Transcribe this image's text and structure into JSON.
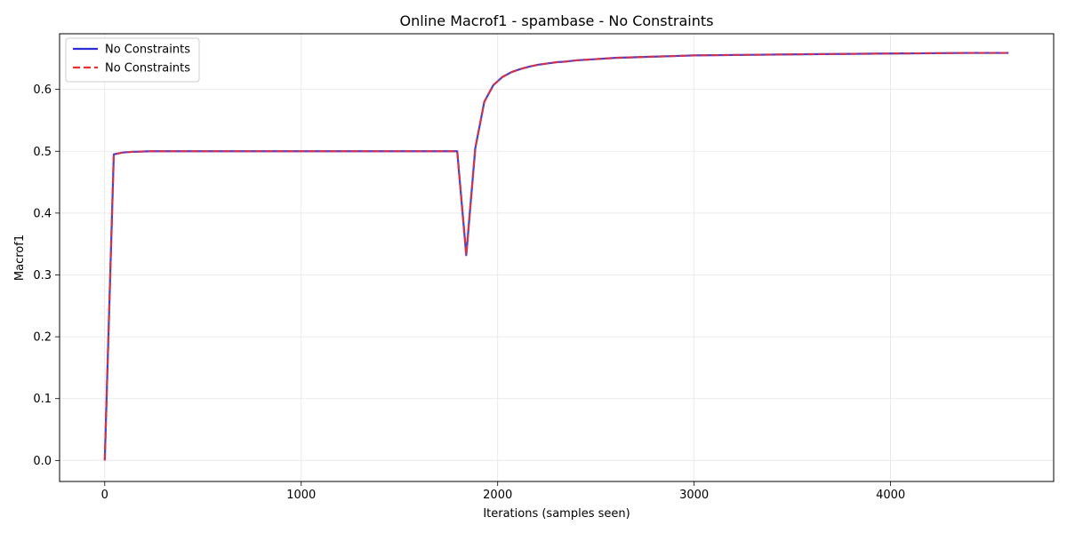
{
  "chart_data": {
    "type": "line",
    "title": "Online Macrof1 - spambase - No Constraints",
    "xlabel": "Iterations (samples seen)",
    "ylabel": "Macrof1",
    "xlim": [
      -230,
      4830
    ],
    "ylim": [
      -0.034,
      0.69
    ],
    "xticks": [
      0,
      1000,
      2000,
      3000,
      4000
    ],
    "xtick_labels": [
      "0",
      "1000",
      "2000",
      "3000",
      "4000"
    ],
    "yticks": [
      0.0,
      0.1,
      0.2,
      0.3,
      0.4,
      0.5,
      0.6
    ],
    "ytick_labels": [
      "0.0",
      "0.1",
      "0.2",
      "0.3",
      "0.4",
      "0.5",
      "0.6"
    ],
    "grid": true,
    "legend_position": "top-left",
    "series": [
      {
        "name": "No Constraints",
        "color": "#2b2bd9",
        "style": "solid",
        "x": [
          0,
          46,
          92,
          138,
          184,
          230,
          276,
          500,
          1000,
          1500,
          1794,
          1840,
          1886,
          1932,
          1978,
          2024,
          2070,
          2116,
          2162,
          2208,
          2254,
          2300,
          2346,
          2400,
          2500,
          2600,
          2800,
          3000,
          3300,
          3600,
          4000,
          4400,
          4600
        ],
        "y": [
          0.0,
          0.495,
          0.498,
          0.499,
          0.4995,
          0.5,
          0.5,
          0.5,
          0.5,
          0.5,
          0.5,
          0.332,
          0.505,
          0.58,
          0.607,
          0.62,
          0.628,
          0.633,
          0.637,
          0.64,
          0.642,
          0.644,
          0.645,
          0.647,
          0.649,
          0.651,
          0.653,
          0.655,
          0.656,
          0.657,
          0.658,
          0.659,
          0.659
        ]
      },
      {
        "name": "No Constraints",
        "color": "#f03030",
        "style": "dashed",
        "x": [
          0,
          46,
          92,
          138,
          184,
          230,
          276,
          500,
          1000,
          1500,
          1794,
          1840,
          1886,
          1932,
          1978,
          2024,
          2070,
          2116,
          2162,
          2208,
          2254,
          2300,
          2346,
          2400,
          2500,
          2600,
          2800,
          3000,
          3300,
          3600,
          4000,
          4400,
          4600
        ],
        "y": [
          0.0,
          0.495,
          0.498,
          0.499,
          0.4995,
          0.5,
          0.5,
          0.5,
          0.5,
          0.5,
          0.5,
          0.332,
          0.505,
          0.58,
          0.607,
          0.62,
          0.628,
          0.633,
          0.637,
          0.64,
          0.642,
          0.644,
          0.645,
          0.647,
          0.649,
          0.651,
          0.653,
          0.655,
          0.656,
          0.657,
          0.658,
          0.659,
          0.659
        ]
      }
    ]
  }
}
